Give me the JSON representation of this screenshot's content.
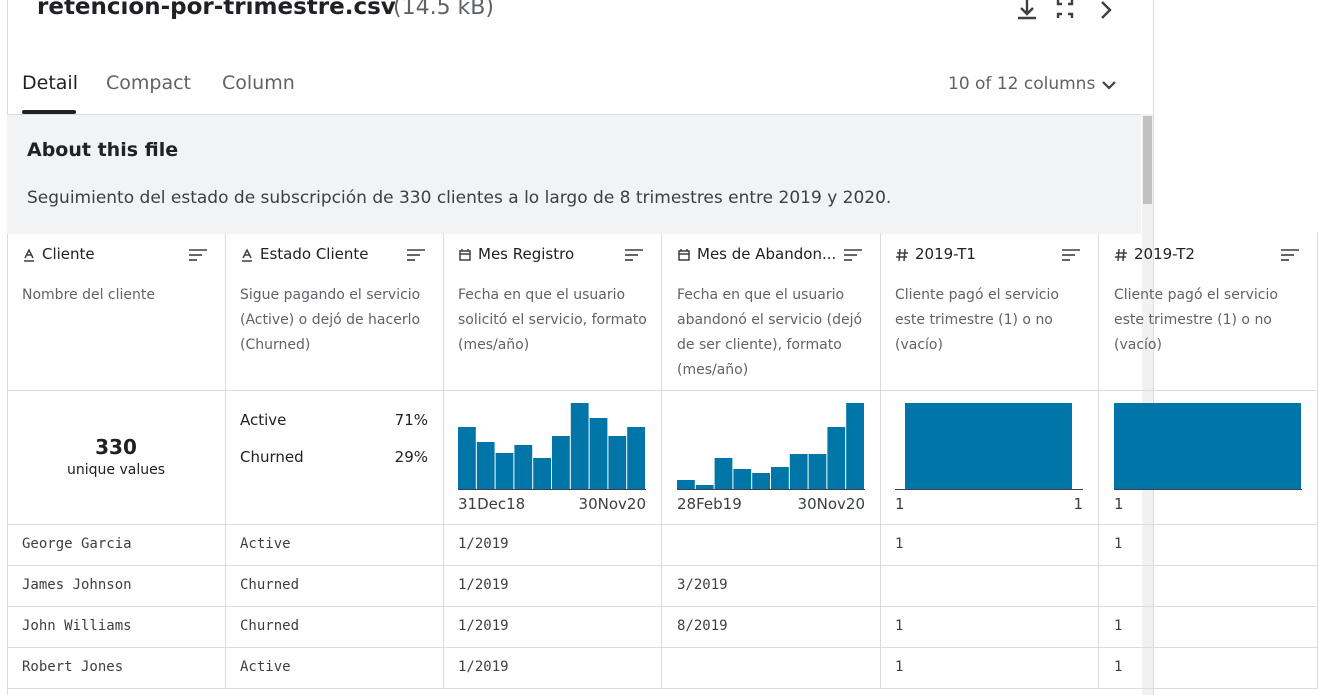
{
  "header": {
    "title": "retencion-por-trimestre.csv",
    "size": "(14.5 kB)"
  },
  "tabs": [
    "Detail",
    "Compact",
    "Column"
  ],
  "column_count": "10 of 12 columns",
  "about": {
    "title": "About this file",
    "description": "Seguimiento del estado de subscripción de 330 clientes a lo largo de 8 trimestres entre 2019 y 2020."
  },
  "columns": [
    {
      "name": "Cliente",
      "kind": "text",
      "description": "Nombre del cliente",
      "summary": {
        "value": "330",
        "label": "unique values"
      }
    },
    {
      "name": "Estado Cliente",
      "kind": "text",
      "description": "Sigue pagando el servicio (Active) o dejó de hacerlo (Churned)",
      "summary": {
        "items": [
          {
            "label": "Active",
            "value": "71%"
          },
          {
            "label": "Churned",
            "value": "29%"
          }
        ]
      }
    },
    {
      "name": "Mes Registro",
      "kind": "date",
      "description": "Fecha en que el usuario solicitó el servicio, formato (mes/año)",
      "summary": {
        "histogram": [
          62,
          47,
          36,
          44,
          31,
          53,
          86,
          71,
          53,
          62
        ],
        "range": [
          "31Dec18",
          "30Nov20"
        ]
      }
    },
    {
      "name": "Mes de Abandon...",
      "kind": "date",
      "description": "Fecha en que el usuario abandonó el servicio (dejó de ser cliente), formato (mes/año)",
      "summary": {
        "histogram": [
          9,
          4,
          31,
          20,
          16,
          22,
          35,
          35,
          62,
          86
        ],
        "range": [
          "28Feb19",
          "30Nov20"
        ]
      }
    },
    {
      "name": "2019-T1",
      "kind": "number",
      "description": "Cliente pagó el servicio este trimestre (1) o no (vacío)",
      "summary": {
        "histogram": [
          86
        ],
        "range": [
          "1",
          "1"
        ]
      }
    },
    {
      "name": "2019-T2",
      "kind": "number",
      "description": "Cliente pagó el servicio este trimestre (1) o no (vacío)",
      "summary": {
        "histogram": [
          86
        ],
        "range": [
          "1"
        ]
      }
    }
  ],
  "rows": [
    [
      "George Garcia",
      "Active",
      "1/2019",
      null,
      "1",
      "1"
    ],
    [
      "James Johnson",
      "Churned",
      "1/2019",
      "3/2019",
      null,
      null
    ],
    [
      "John Williams",
      "Churned",
      "1/2019",
      "8/2019",
      "1",
      "1"
    ],
    [
      "Robert Jones",
      "Active",
      "1/2019",
      null,
      "1",
      "1"
    ]
  ]
}
